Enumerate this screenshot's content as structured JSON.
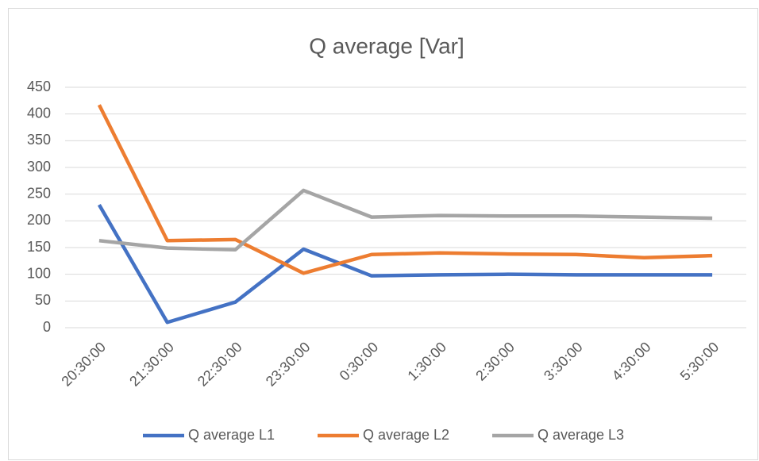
{
  "chart_data": {
    "type": "line",
    "title": "Q average [Var]",
    "categories": [
      "20:30:00",
      "21:30:00",
      "22:30:00",
      "23:30:00",
      "0:30:00",
      "1:30:00",
      "2:30:00",
      "3:30:00",
      "4:30:00",
      "5:30:00"
    ],
    "series": [
      {
        "name": "Q average L1",
        "color": "#4472c4",
        "values": [
          230,
          10,
          48,
          147,
          97,
          99,
          100,
          99,
          99,
          99
        ]
      },
      {
        "name": "Q average L2",
        "color": "#ed7d31",
        "values": [
          417,
          163,
          165,
          102,
          137,
          140,
          138,
          137,
          131,
          135
        ]
      },
      {
        "name": "Q average L3",
        "color": "#a5a5a5",
        "values": [
          163,
          149,
          146,
          257,
          207,
          210,
          209,
          209,
          207,
          205
        ]
      }
    ],
    "ylim": [
      0,
      450
    ],
    "yticks": [
      0,
      50,
      100,
      150,
      200,
      250,
      300,
      350,
      400,
      450
    ],
    "grid": true,
    "legend": "bottom"
  }
}
